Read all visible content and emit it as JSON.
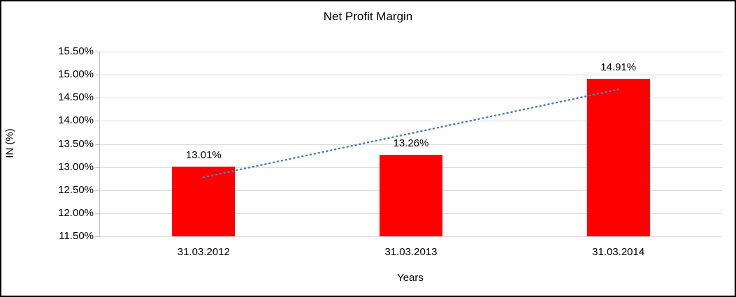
{
  "chart_data": {
    "type": "bar",
    "title": "Net Profit Margin",
    "xlabel": "Years",
    "ylabel": "IN (%)",
    "categories": [
      "31.03.2012",
      "31.03.2013",
      "31.03.2014"
    ],
    "values": [
      13.01,
      13.26,
      14.91
    ],
    "data_labels": [
      "13.01%",
      "13.26%",
      "14.91%"
    ],
    "ylim": [
      11.5,
      15.5
    ],
    "ytick_step": 0.5,
    "ytick_labels": [
      "15.50%",
      "15.00%",
      "14.50%",
      "14.00%",
      "13.50%",
      "13.00%",
      "12.50%",
      "12.00%",
      "11.50%"
    ],
    "grid": true,
    "legend": "none",
    "bar_color": "#ff0000",
    "gridline_color": "#d9d9d9",
    "axis_color": "#bfbfbf",
    "trendline": {
      "style": "dotted",
      "color": "#4a7ebb",
      "start_value": 12.78,
      "end_value": 14.68
    }
  }
}
